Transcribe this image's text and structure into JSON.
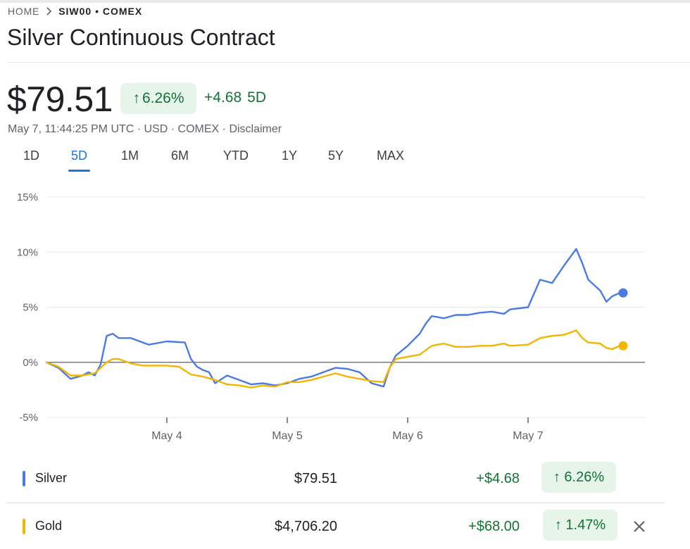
{
  "breadcrumb": {
    "home": "HOME",
    "current": "SIW00 • COMEX"
  },
  "title": "Silver Continuous Contract",
  "quote": {
    "price": "$79.51",
    "change_pct": "6.26%",
    "change_abs": "+4.68",
    "period": "5D",
    "meta_time": "May 7, 11:44:25 PM UTC · USD · COMEX · ",
    "disclaimer": "Disclaimer"
  },
  "tabs": [
    {
      "label": "1D",
      "active": false
    },
    {
      "label": "5D",
      "active": true
    },
    {
      "label": "1M",
      "active": false
    },
    {
      "label": "6M",
      "active": false
    },
    {
      "label": "YTD",
      "active": false
    },
    {
      "label": "1Y",
      "active": false
    },
    {
      "label": "5Y",
      "active": false
    },
    {
      "label": "MAX",
      "active": false
    }
  ],
  "chart_data": {
    "type": "line",
    "ylim": [
      -5,
      15
    ],
    "yticks": [
      "15%",
      "10%",
      "5%",
      "0%",
      "-5%"
    ],
    "ytick_values": [
      15,
      10,
      5,
      0,
      -5
    ],
    "xlim": [
      0,
      5
    ],
    "xticks": [
      {
        "label": "May 4",
        "value": 1
      },
      {
        "label": "May 5",
        "value": 2
      },
      {
        "label": "May 6",
        "value": 3
      },
      {
        "label": "May 7",
        "value": 4
      }
    ],
    "grid": true,
    "baseline": 0,
    "series": [
      {
        "name": "Silver",
        "color": "#4a7be3",
        "points": [
          [
            0,
            0
          ],
          [
            0.1,
            -0.5
          ],
          [
            0.2,
            -1.5
          ],
          [
            0.3,
            -1.2
          ],
          [
            0.35,
            -0.9
          ],
          [
            0.4,
            -1.2
          ],
          [
            0.45,
            -0.2
          ],
          [
            0.5,
            2.4
          ],
          [
            0.55,
            2.6
          ],
          [
            0.6,
            2.2
          ],
          [
            0.7,
            2.2
          ],
          [
            0.8,
            1.8
          ],
          [
            0.85,
            1.6
          ],
          [
            1.0,
            1.9
          ],
          [
            1.15,
            1.8
          ],
          [
            1.2,
            0.3
          ],
          [
            1.25,
            -0.4
          ],
          [
            1.3,
            -0.7
          ],
          [
            1.35,
            -0.9
          ],
          [
            1.4,
            -1.9
          ],
          [
            1.5,
            -1.2
          ],
          [
            1.6,
            -1.6
          ],
          [
            1.7,
            -2.0
          ],
          [
            1.8,
            -1.9
          ],
          [
            1.9,
            -2.1
          ],
          [
            2.0,
            -1.9
          ],
          [
            2.1,
            -1.5
          ],
          [
            2.2,
            -1.3
          ],
          [
            2.3,
            -0.9
          ],
          [
            2.4,
            -0.5
          ],
          [
            2.5,
            -0.6
          ],
          [
            2.6,
            -0.9
          ],
          [
            2.7,
            -1.9
          ],
          [
            2.8,
            -2.2
          ],
          [
            2.85,
            -0.5
          ],
          [
            2.9,
            0.6
          ],
          [
            3.0,
            1.5
          ],
          [
            3.1,
            2.6
          ],
          [
            3.15,
            3.5
          ],
          [
            3.2,
            4.2
          ],
          [
            3.3,
            4.0
          ],
          [
            3.4,
            4.3
          ],
          [
            3.5,
            4.3
          ],
          [
            3.6,
            4.5
          ],
          [
            3.7,
            4.6
          ],
          [
            3.8,
            4.4
          ],
          [
            3.85,
            4.8
          ],
          [
            4.0,
            5.0
          ],
          [
            4.1,
            7.5
          ],
          [
            4.2,
            7.2
          ],
          [
            4.3,
            8.8
          ],
          [
            4.4,
            10.3
          ],
          [
            4.45,
            9.0
          ],
          [
            4.5,
            7.5
          ],
          [
            4.6,
            6.5
          ],
          [
            4.65,
            5.5
          ],
          [
            4.7,
            6.0
          ],
          [
            4.76,
            6.3
          ]
        ]
      },
      {
        "name": "Gold",
        "color": "#f2b600",
        "points": [
          [
            0,
            0
          ],
          [
            0.1,
            -0.4
          ],
          [
            0.2,
            -1.2
          ],
          [
            0.3,
            -1.2
          ],
          [
            0.4,
            -1.0
          ],
          [
            0.45,
            -0.5
          ],
          [
            0.5,
            0.0
          ],
          [
            0.55,
            0.3
          ],
          [
            0.6,
            0.3
          ],
          [
            0.7,
            -0.1
          ],
          [
            0.8,
            -0.3
          ],
          [
            1.0,
            -0.3
          ],
          [
            1.1,
            -0.4
          ],
          [
            1.2,
            -1.1
          ],
          [
            1.25,
            -1.2
          ],
          [
            1.3,
            -1.3
          ],
          [
            1.4,
            -1.6
          ],
          [
            1.5,
            -2.0
          ],
          [
            1.6,
            -2.1
          ],
          [
            1.7,
            -2.3
          ],
          [
            1.8,
            -2.1
          ],
          [
            1.9,
            -2.2
          ],
          [
            2.0,
            -1.8
          ],
          [
            2.1,
            -1.8
          ],
          [
            2.2,
            -1.6
          ],
          [
            2.3,
            -1.3
          ],
          [
            2.4,
            -1.0
          ],
          [
            2.5,
            -1.3
          ],
          [
            2.6,
            -1.5
          ],
          [
            2.7,
            -1.7
          ],
          [
            2.8,
            -1.8
          ],
          [
            2.85,
            -0.5
          ],
          [
            2.9,
            0.3
          ],
          [
            3.0,
            0.5
          ],
          [
            3.1,
            0.7
          ],
          [
            3.2,
            1.5
          ],
          [
            3.3,
            1.7
          ],
          [
            3.4,
            1.4
          ],
          [
            3.5,
            1.4
          ],
          [
            3.6,
            1.5
          ],
          [
            3.7,
            1.5
          ],
          [
            3.8,
            1.7
          ],
          [
            3.85,
            1.5
          ],
          [
            4.0,
            1.6
          ],
          [
            4.1,
            2.2
          ],
          [
            4.2,
            2.4
          ],
          [
            4.3,
            2.5
          ],
          [
            4.4,
            2.9
          ],
          [
            4.45,
            2.2
          ],
          [
            4.5,
            1.8
          ],
          [
            4.6,
            1.7
          ],
          [
            4.65,
            1.3
          ],
          [
            4.7,
            1.2
          ],
          [
            4.76,
            1.5
          ]
        ]
      }
    ]
  },
  "legend": [
    {
      "name": "Silver",
      "price": "$79.51",
      "change_abs": "+$4.68",
      "change_pct": "6.26%",
      "color": "#4a7be3"
    },
    {
      "name": "Gold",
      "price": "$4,706.20",
      "change_abs": "+$68.00",
      "change_pct": "1.47%",
      "color": "#f2b600"
    }
  ]
}
